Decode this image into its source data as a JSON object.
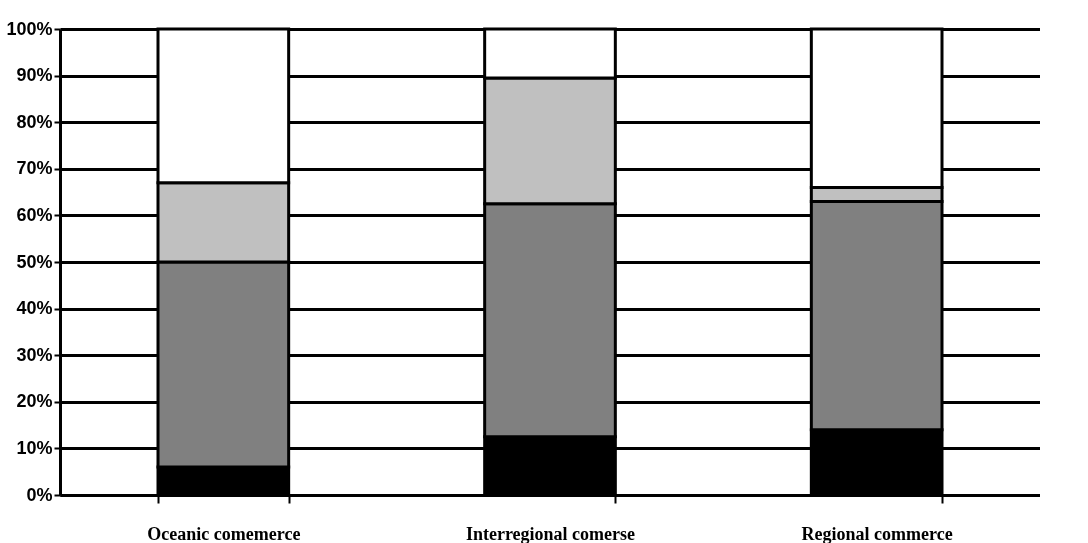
{
  "chart_data": {
    "type": "bar",
    "stacked": true,
    "categories": [
      "Oceanic comemerce",
      "Interregional comerse",
      "Regional commerce"
    ],
    "series": [
      {
        "color": "#000000",
        "values": [
          6,
          12.5,
          14
        ]
      },
      {
        "color": "#808080",
        "values": [
          44,
          50,
          49
        ]
      },
      {
        "color": "#c0c0c0",
        "values": [
          17,
          27,
          3
        ]
      },
      {
        "color": "#ffffff",
        "values": [
          33,
          10.5,
          34
        ]
      }
    ],
    "ylim": [
      0,
      100
    ],
    "yticks": [
      {
        "value": 0,
        "label": "0%"
      },
      {
        "value": 10,
        "label": "10%"
      },
      {
        "value": 20,
        "label": "20%"
      },
      {
        "value": 30,
        "label": "30%"
      },
      {
        "value": 40,
        "label": "40%"
      },
      {
        "value": 50,
        "label": "50%"
      },
      {
        "value": 60,
        "label": "60%"
      },
      {
        "value": 70,
        "label": "70%"
      },
      {
        "value": 80,
        "label": "80%"
      },
      {
        "value": 90,
        "label": "90%"
      },
      {
        "value": 100,
        "label": "100%"
      }
    ],
    "grid": "y",
    "legend": false
  }
}
